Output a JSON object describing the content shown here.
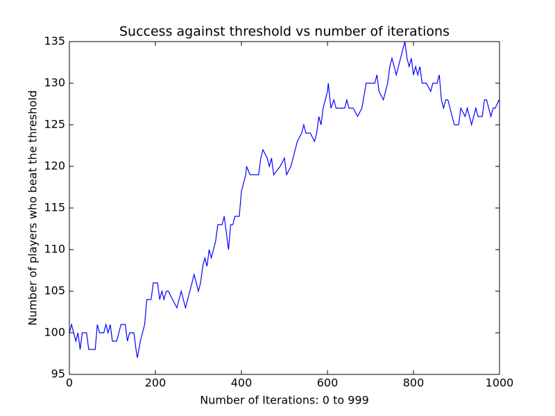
{
  "chart_data": {
    "type": "line",
    "title": "Success against threshold vs number of iterations",
    "x_label": "Number of Iterations: 0 to 999",
    "y_label": "Number of players who beat the threshold",
    "xlim": [
      0,
      1000
    ],
    "ylim": [
      95,
      135
    ],
    "xticks": [
      0,
      200,
      400,
      600,
      800,
      1000
    ],
    "yticks": [
      95,
      100,
      105,
      110,
      115,
      120,
      125,
      130,
      135
    ],
    "grid": false,
    "series": [
      {
        "color": "#0000ff",
        "x": [
          0,
          5,
          10,
          15,
          20,
          25,
          30,
          40,
          45,
          60,
          65,
          70,
          80,
          85,
          90,
          95,
          100,
          110,
          115,
          120,
          130,
          135,
          140,
          150,
          155,
          158,
          165,
          170,
          175,
          180,
          190,
          195,
          205,
          210,
          215,
          220,
          225,
          230,
          240,
          250,
          255,
          260,
          270,
          275,
          280,
          285,
          290,
          295,
          300,
          305,
          310,
          315,
          320,
          325,
          330,
          340,
          345,
          355,
          360,
          365,
          370,
          375,
          380,
          385,
          395,
          400,
          405,
          410,
          412,
          420,
          440,
          445,
          450,
          460,
          465,
          470,
          475,
          490,
          500,
          505,
          515,
          520,
          530,
          540,
          545,
          550,
          560,
          570,
          575,
          580,
          585,
          590,
          600,
          602,
          608,
          615,
          620,
          640,
          645,
          650,
          660,
          670,
          680,
          690,
          700,
          710,
          715,
          720,
          730,
          740,
          745,
          750,
          755,
          760,
          770,
          775,
          780,
          785,
          790,
          795,
          800,
          805,
          810,
          815,
          820,
          830,
          840,
          845,
          855,
          860,
          865,
          870,
          875,
          880,
          885,
          890,
          895,
          905,
          910,
          920,
          925,
          930,
          935,
          945,
          950,
          960,
          965,
          970,
          975,
          980,
          985,
          990,
          999
        ],
        "values": [
          100,
          101,
          100,
          99,
          100,
          98,
          100,
          100,
          98,
          98,
          101,
          100,
          100,
          101,
          100,
          101,
          99,
          99,
          100,
          101,
          101,
          99,
          100,
          100,
          98,
          97,
          99,
          100,
          101,
          104,
          104,
          106,
          106,
          104,
          105,
          104,
          105,
          105,
          104,
          103,
          104,
          105,
          103,
          104,
          105,
          106,
          107,
          106,
          105,
          106,
          108,
          109,
          108,
          110,
          109,
          111,
          113,
          113,
          114,
          112,
          110,
          113,
          113,
          114,
          114,
          117,
          118,
          119,
          120,
          119,
          119,
          121,
          122,
          121,
          120,
          121,
          119,
          120,
          121,
          119,
          120,
          121,
          123,
          124,
          125,
          124,
          124,
          123,
          124,
          126,
          125,
          127,
          129,
          130,
          127,
          128,
          127,
          127,
          128,
          127,
          127,
          126,
          127,
          130,
          130,
          130,
          131,
          129,
          128,
          130,
          132,
          133,
          132,
          131,
          133,
          134,
          135,
          133,
          132,
          133,
          131,
          132,
          131,
          132,
          130,
          130,
          129,
          130,
          130,
          131,
          128,
          127,
          128,
          128,
          127,
          126,
          125,
          125,
          127,
          126,
          127,
          126,
          125,
          127,
          126,
          126,
          128,
          128,
          127,
          126,
          127,
          127,
          128
        ]
      }
    ]
  }
}
